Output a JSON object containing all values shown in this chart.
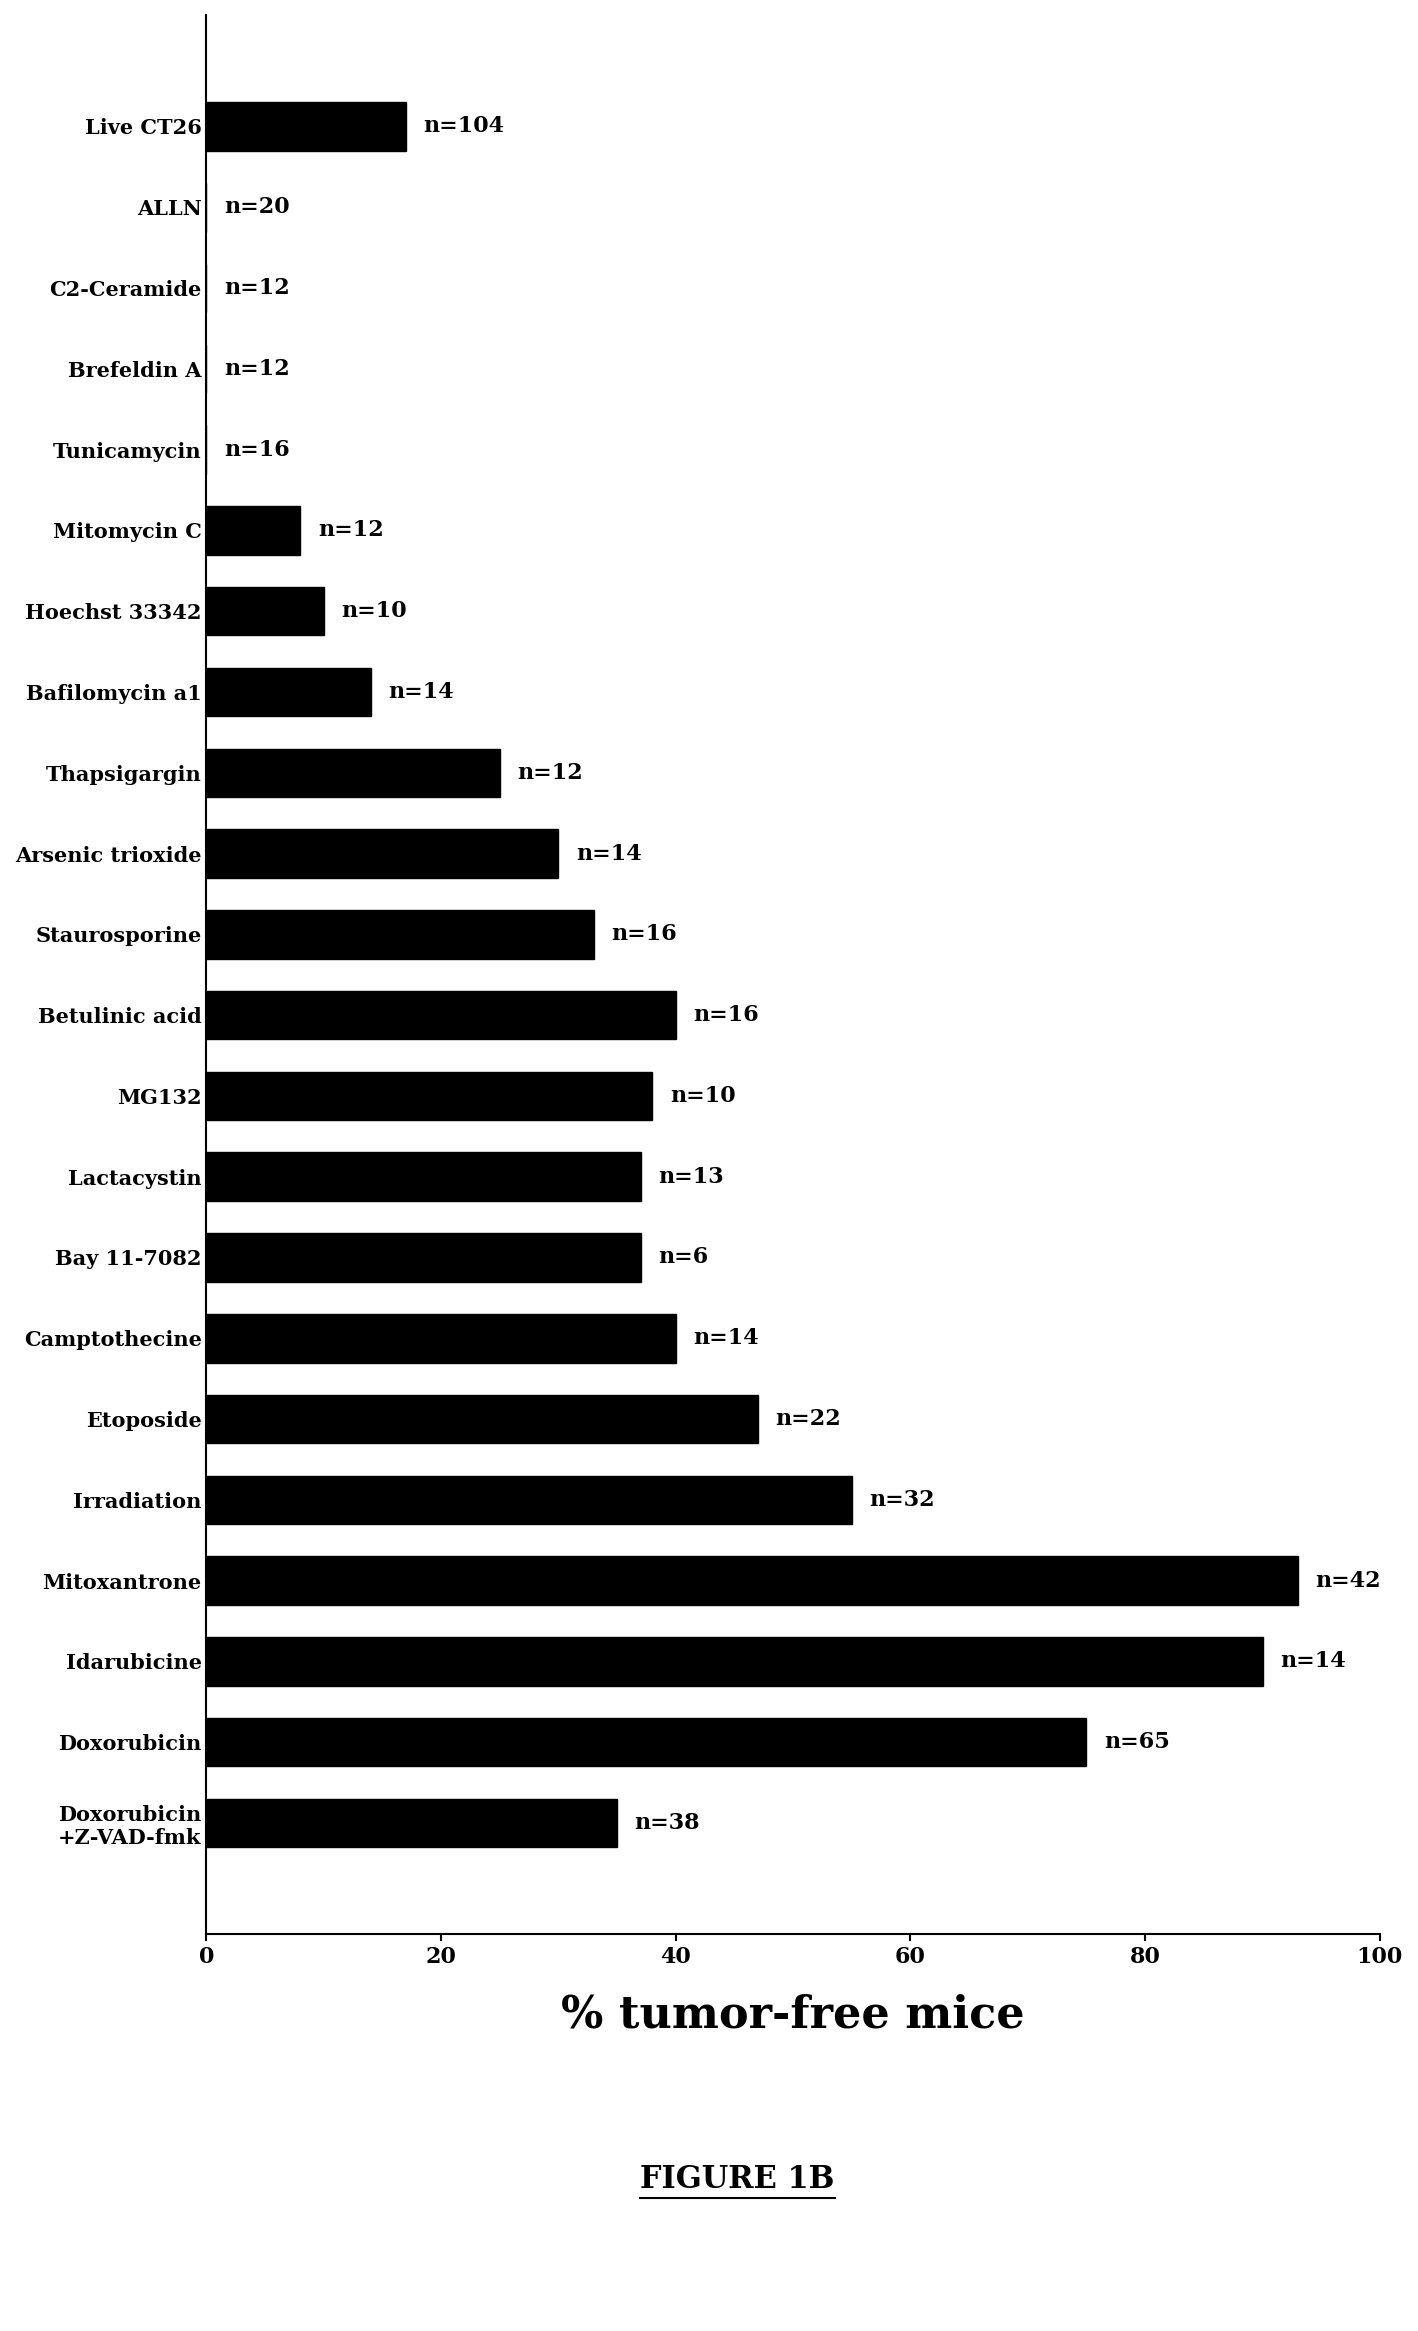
{
  "categories": [
    "Doxorubicin\n+Z-VAD-fmk",
    "Doxorubicin",
    "Idarubicine",
    "Mitoxantrone",
    "Irradiation",
    "Etoposide",
    "Camptothecine",
    "Bay 11-7082",
    "Lactacystin",
    "MG132",
    "Betulinic acid",
    "Staurosporine",
    "Arsenic trioxide",
    "Thapsigargin",
    "Bafilomycin a1",
    "Hoechst 33342",
    "Mitomycin C",
    "Tunicamycin",
    "Brefeldin A",
    "C2-Ceramide",
    "ALLN",
    "Live CT26"
  ],
  "values": [
    35,
    75,
    90,
    93,
    55,
    47,
    40,
    37,
    37,
    38,
    40,
    33,
    30,
    25,
    14,
    10,
    8,
    0,
    0,
    0,
    0,
    17
  ],
  "n_labels": [
    "n=38",
    "n=65",
    "n=14",
    "n=42",
    "n=32",
    "n=22",
    "n=14",
    "n=6",
    "n=13",
    "n=10",
    "n=16",
    "n=16",
    "n=14",
    "n=12",
    "n=14",
    "n=10",
    "n=12",
    "n=16",
    "n=12",
    "n=12",
    "n=20",
    "n=104"
  ],
  "bar_color": "#000000",
  "background_color": "#ffffff",
  "xlabel": "% tumor-free mice",
  "figure_label": "FIGURE 1B",
  "xlim": [
    0,
    100
  ],
  "xticks": [
    0,
    20,
    40,
    60,
    80,
    100
  ]
}
